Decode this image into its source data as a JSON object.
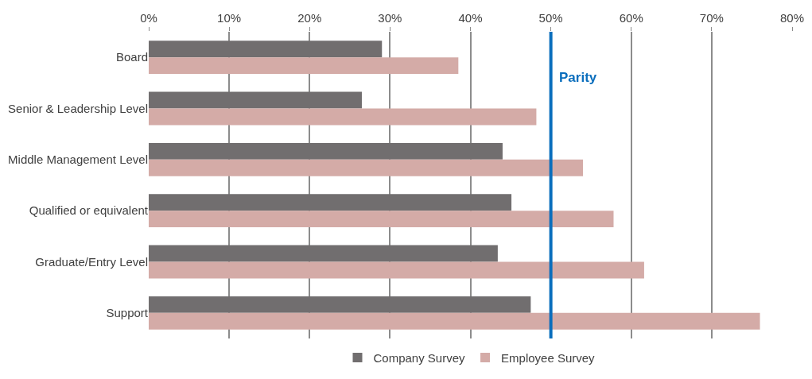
{
  "chart_data": {
    "type": "bar",
    "orientation": "horizontal",
    "categories": [
      "Board",
      "Senior & Leadership Level",
      "Middle Management Level",
      "Qualified or equivalent",
      "Graduate/Entry Level",
      "Support"
    ],
    "series": [
      {
        "name": "Company Survey",
        "color": "#716e6f",
        "values": [
          29,
          26.5,
          44,
          45.1,
          43.4,
          47.5
        ]
      },
      {
        "name": "Employee Survey",
        "color": "#d4aba7",
        "values": [
          38.5,
          48.2,
          54,
          57.8,
          61.6,
          76
        ]
      }
    ],
    "xlim": [
      0,
      80
    ],
    "xticks": [
      {
        "value": 0,
        "label": "0%"
      },
      {
        "value": 10,
        "label": "10%"
      },
      {
        "value": 20,
        "label": "20%"
      },
      {
        "value": 30,
        "label": "30%"
      },
      {
        "value": 40,
        "label": "40%"
      },
      {
        "value": 50,
        "label": "50%"
      },
      {
        "value": 60,
        "label": "60%"
      },
      {
        "value": 70,
        "label": "70%"
      },
      {
        "value": 80,
        "label": "80%"
      }
    ],
    "ref_lines": [
      {
        "axis": "x",
        "value": 50,
        "label": "Parity",
        "color": "#0a6ebd"
      }
    ],
    "grid": "x",
    "legend": "bottom"
  }
}
